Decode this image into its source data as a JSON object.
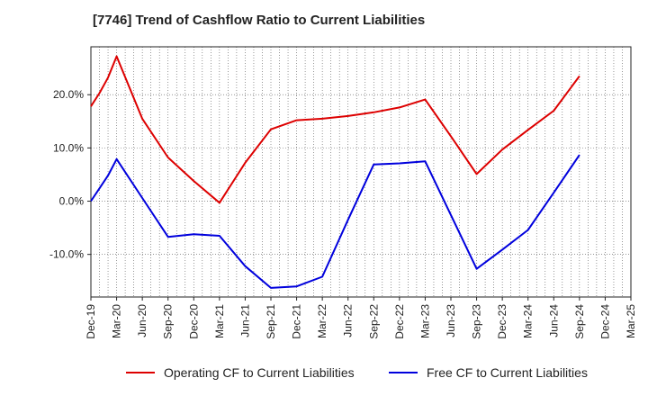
{
  "chart_data": {
    "type": "line",
    "title": "[7746]  Trend of Cashflow Ratio to Current Liabilities",
    "xlabel": "",
    "ylabel": "",
    "x_labels": [
      "Dec-19",
      "Mar-20",
      "Jun-20",
      "Sep-20",
      "Dec-20",
      "Mar-21",
      "Jun-21",
      "Sep-21",
      "Dec-21",
      "Mar-22",
      "Jun-22",
      "Sep-22",
      "Dec-22",
      "Mar-23",
      "Jun-23",
      "Sep-23",
      "Dec-23",
      "Mar-24",
      "Jun-24",
      "Sep-24",
      "Dec-24",
      "Mar-25"
    ],
    "y_ticks": [
      20,
      10,
      0,
      -10
    ],
    "y_tick_labels": [
      "20.0%",
      "10.0%",
      "0.0%",
      "-10.0%"
    ],
    "ylim": [
      -18,
      29
    ],
    "grid": true,
    "legend_position": "bottom",
    "series": [
      {
        "name": "Operating CF to Current Liabilities",
        "color": "#dd0000",
        "points": [
          {
            "x": "Dec-19",
            "y": 17.8
          },
          {
            "x": "Jan-20",
            "y": 20.3
          },
          {
            "x": "Feb-20",
            "y": 23.2
          },
          {
            "x": "Mar-20",
            "y": 27.2
          },
          {
            "x": "Jun-20",
            "y": 15.5
          },
          {
            "x": "Sep-20",
            "y": 8.2
          },
          {
            "x": "Dec-20",
            "y": 3.8
          },
          {
            "x": "Mar-21",
            "y": -0.3
          },
          {
            "x": "Jun-21",
            "y": 7.2
          },
          {
            "x": "Sep-21",
            "y": 13.5
          },
          {
            "x": "Dec-21",
            "y": 15.2
          },
          {
            "x": "Mar-22",
            "y": 15.5
          },
          {
            "x": "Jun-22",
            "y": 16.0
          },
          {
            "x": "Sep-22",
            "y": 16.7
          },
          {
            "x": "Dec-22",
            "y": 17.6
          },
          {
            "x": "Mar-23",
            "y": 19.1
          },
          {
            "x": "Jun-23",
            "y": 12.2
          },
          {
            "x": "Sep-23",
            "y": 5.1
          },
          {
            "x": "Dec-23",
            "y": 9.7
          },
          {
            "x": "Mar-24",
            "y": 13.4
          },
          {
            "x": "Jun-24",
            "y": 17.0
          },
          {
            "x": "Sep-24",
            "y": 23.5
          }
        ]
      },
      {
        "name": "Free CF to Current Liabilities",
        "color": "#0000dd",
        "points": [
          {
            "x": "Dec-19",
            "y": 0.0
          },
          {
            "x": "Jan-20",
            "y": 2.4
          },
          {
            "x": "Feb-20",
            "y": 4.8
          },
          {
            "x": "Mar-20",
            "y": 7.9
          },
          {
            "x": "Jun-20",
            "y": 0.6
          },
          {
            "x": "Sep-20",
            "y": -6.7
          },
          {
            "x": "Dec-20",
            "y": -6.2
          },
          {
            "x": "Mar-21",
            "y": -6.5
          },
          {
            "x": "Jun-21",
            "y": -12.2
          },
          {
            "x": "Sep-21",
            "y": -16.3
          },
          {
            "x": "Dec-21",
            "y": -16.0
          },
          {
            "x": "Mar-22",
            "y": -14.2
          },
          {
            "x": "Jun-22",
            "y": -3.5
          },
          {
            "x": "Sep-22",
            "y": 6.9
          },
          {
            "x": "Dec-22",
            "y": 7.1
          },
          {
            "x": "Mar-23",
            "y": 7.5
          },
          {
            "x": "Jun-23",
            "y": -2.6
          },
          {
            "x": "Sep-23",
            "y": -12.7
          },
          {
            "x": "Dec-23",
            "y": -9.1
          },
          {
            "x": "Mar-24",
            "y": -5.4
          },
          {
            "x": "Jun-24",
            "y": 1.6
          },
          {
            "x": "Sep-24",
            "y": 8.7
          }
        ]
      }
    ]
  }
}
